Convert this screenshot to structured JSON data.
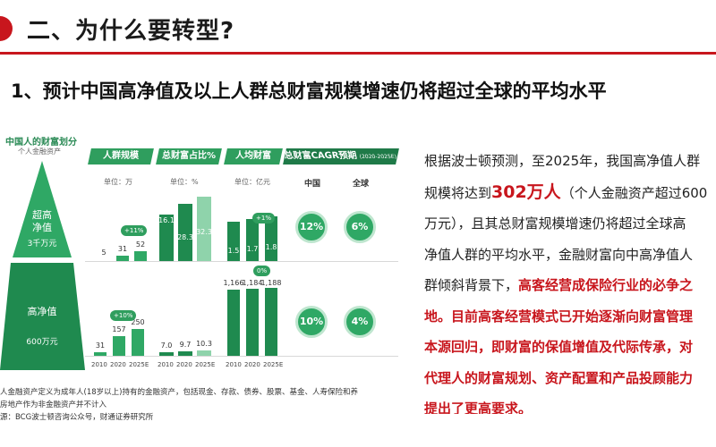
{
  "header": {
    "title": "二、为什么要转型?"
  },
  "subtitle": "1、预计中国高净值及以上人群总财富规模增速仍将超过全球的平均水平",
  "infographic": {
    "pyramid_title": "中国人的财富划分",
    "pyramid_subtitle": "个人金融资产",
    "top_tier": {
      "label_lines": [
        "超高",
        "净值"
      ],
      "threshold": "3千万元"
    },
    "bottom_tier": {
      "label": "高净值",
      "threshold": "600万元"
    },
    "columns": [
      "人群规模",
      "总财富占比%",
      "人均财富",
      "总财富CAGR预期"
    ],
    "cagr_period": "(2020-2025E)",
    "units": {
      "population": "单位：万",
      "wealth_share": "单位：%",
      "per_capita": "单位：亿元"
    },
    "regions": [
      "中国",
      "全球"
    ],
    "years": [
      "2010",
      "2020",
      "2025E"
    ],
    "top_row": {
      "population": [
        "5",
        "31",
        "52"
      ],
      "population_growth": "+11%",
      "wealth_share": [
        "16.1",
        "28.3",
        "32.3"
      ],
      "per_capita": [
        "1.5",
        "1.7",
        "1.8"
      ],
      "per_capita_growth": "+1%",
      "cagr": [
        "12%",
        "6%"
      ]
    },
    "bottom_row": {
      "population": [
        "31",
        "157",
        "250"
      ],
      "population_growth": "+10%",
      "wealth_share": [
        "7.0",
        "9.7",
        "10.3"
      ],
      "per_capita": [
        "1,166",
        "1,184",
        "1,188"
      ],
      "per_capita_growth": "0%",
      "cagr": [
        "10%",
        "4%"
      ]
    }
  },
  "footnote": [
    "人金融资产定义为成年人(18岁以上)持有的金融资产，包括现金、存款、债券、股票、基金、人寿保险和养",
    "房地产作为非金融资产并不计入",
    "源：BCG波士顿咨询公众号，财通证券研究所"
  ],
  "paragraph": {
    "line1": "根据波士顿预测，至2025年，我国高净值人群",
    "line2_a": "规模将达到",
    "line2_b": "302万人",
    "line2_c": "（个人金融资产超过600",
    "line3": "万元），且其总财富规模增速仍将超过全球高",
    "line4": "净值人群的平均水平，金融财富向中高净值人",
    "line5_a": "群倾斜背景下，",
    "line5_b": "高客经营成保险行业的必争之",
    "line6_a": "地。",
    "line6_b": "目前高客经营模式已开始逐渐向财富管理",
    "line7": "本源回归，即财富的保值增值及代际传承，对",
    "line8": "代理人的财富规划、资产配置和产品投顾能力",
    "line9": "提出了更高要求。"
  },
  "colors": {
    "accent": "#c8161d",
    "green": "#2fa865",
    "dark_green": "#1f7a48"
  }
}
